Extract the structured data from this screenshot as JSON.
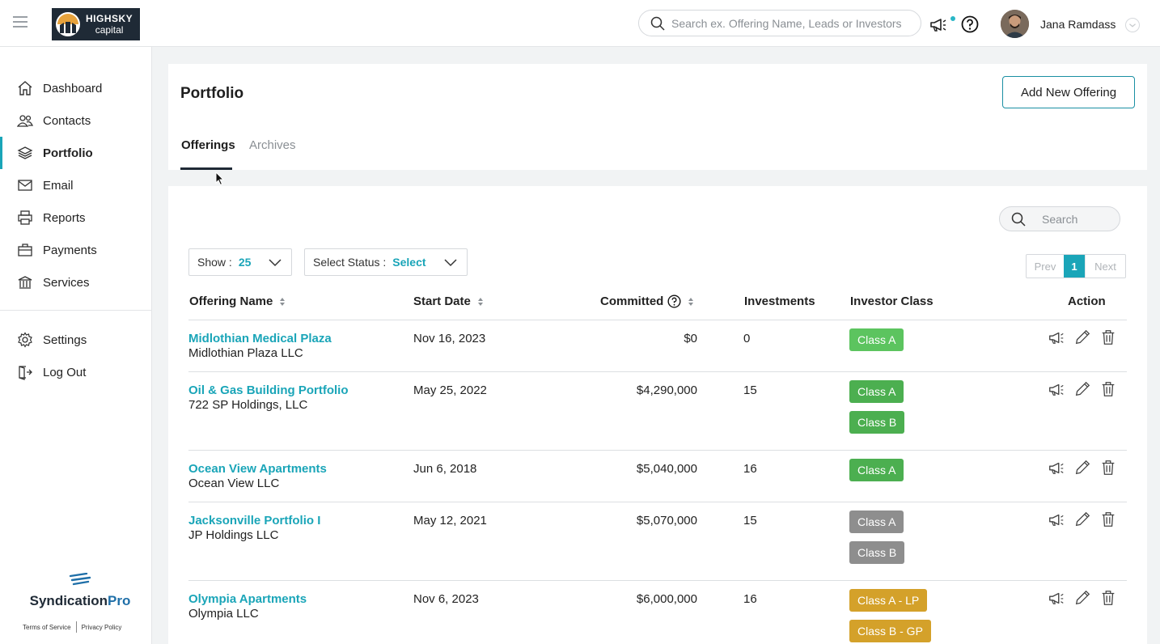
{
  "brand": {
    "line1": "HIGHSKY",
    "line2": "capital"
  },
  "header": {
    "search_placeholder": "Search ex. Offering Name, Leads or Investors",
    "user_name": "Jana Ramdass"
  },
  "sidebar": {
    "items": [
      {
        "label": "Dashboard",
        "icon": "home-icon"
      },
      {
        "label": "Contacts",
        "icon": "users-icon"
      },
      {
        "label": "Portfolio",
        "icon": "layers-icon",
        "active": true
      },
      {
        "label": "Email",
        "icon": "mail-icon"
      },
      {
        "label": "Reports",
        "icon": "printer-icon"
      },
      {
        "label": "Payments",
        "icon": "briefcase-icon"
      },
      {
        "label": "Services",
        "icon": "building-icon"
      }
    ],
    "bottom_items": [
      {
        "label": "Settings",
        "icon": "gear-icon"
      },
      {
        "label": "Log Out",
        "icon": "logout-icon"
      }
    ],
    "footer_logo": {
      "part1": "Syndication",
      "part2": "Pro"
    },
    "footer_links": [
      "Terms of Service",
      "Privacy Policy"
    ]
  },
  "page": {
    "title": "Portfolio",
    "add_button": "Add New Offering",
    "tabs": [
      "Offerings",
      "Archives"
    ],
    "active_tab": "Offerings"
  },
  "table_controls": {
    "search_placeholder": "Search",
    "show_label": "Show :",
    "show_value": "25",
    "status_label": "Select Status :",
    "status_value": "Select",
    "pager": {
      "prev": "Prev",
      "current": "1",
      "next": "Next"
    }
  },
  "table": {
    "columns": [
      "Offering Name",
      "Start Date",
      "Committed",
      "Investments",
      "Investor Class",
      "Action"
    ],
    "rows": [
      {
        "name": "Midlothian Medical Plaza",
        "entity": "Midlothian Plaza LLC",
        "start": "Nov 16, 2023",
        "committed": "$0",
        "investments": "0",
        "classes": [
          {
            "label": "Class A",
            "color": "#5cc45f"
          }
        ]
      },
      {
        "name": "Oil & Gas Building Portfolio",
        "entity": "722 SP Holdings, LLC",
        "start": "May 25, 2022",
        "committed": "$4,290,000",
        "investments": "15",
        "classes": [
          {
            "label": "Class A",
            "color": "#4caf50"
          },
          {
            "label": "Class B",
            "color": "#4caf50"
          }
        ]
      },
      {
        "name": "Ocean View Apartments",
        "entity": "Ocean View LLC",
        "start": "Jun 6, 2018",
        "committed": "$5,040,000",
        "investments": "16",
        "classes": [
          {
            "label": "Class A",
            "color": "#4caf50"
          }
        ]
      },
      {
        "name": "Jacksonville Portfolio I",
        "entity": "JP Holdings LLC",
        "start": "May 12, 2021",
        "committed": "$5,070,000",
        "investments": "15",
        "classes": [
          {
            "label": "Class A",
            "color": "#8e8e8e"
          },
          {
            "label": "Class B",
            "color": "#8e8e8e"
          }
        ]
      },
      {
        "name": "Olympia Apartments",
        "entity": "Olympia LLC",
        "start": "Nov 6, 2023",
        "committed": "$6,000,000",
        "investments": "16",
        "classes": [
          {
            "label": "Class A - LP",
            "color": "#d4a12a"
          },
          {
            "label": "Class B - GP",
            "color": "#d4a12a"
          }
        ]
      }
    ]
  }
}
